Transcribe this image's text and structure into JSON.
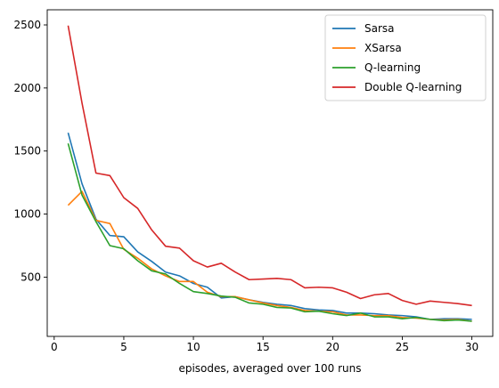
{
  "chart_data": {
    "type": "line",
    "title": "",
    "xlabel": "episodes, averaged over 100 runs",
    "ylabel": "",
    "xlim": [
      -0.5,
      31.5
    ],
    "ylim": [
      30,
      2620
    ],
    "xticks": [
      0,
      5,
      10,
      15,
      20,
      25,
      30
    ],
    "yticks": [
      500,
      1000,
      1500,
      2000,
      2500
    ],
    "grid": false,
    "legend": "top-right",
    "x": [
      1,
      2,
      3,
      4,
      5,
      6,
      7,
      8,
      9,
      10,
      11,
      12,
      13,
      14,
      15,
      16,
      17,
      18,
      19,
      20,
      21,
      22,
      23,
      24,
      25,
      26,
      27,
      28,
      29,
      30
    ],
    "series": [
      {
        "name": "Sarsa",
        "color": "#1f77b4",
        "values": [
          1645,
          1240,
          960,
          830,
          820,
          700,
          625,
          540,
          510,
          450,
          420,
          335,
          345,
          320,
          300,
          285,
          275,
          250,
          240,
          235,
          215,
          215,
          210,
          200,
          195,
          185,
          165,
          170,
          170,
          165
        ]
      },
      {
        "name": "XSarsa",
        "color": "#ff7f0e",
        "values": [
          1070,
          1180,
          950,
          925,
          720,
          650,
          565,
          510,
          465,
          465,
          380,
          345,
          345,
          320,
          295,
          275,
          260,
          235,
          230,
          225,
          200,
          200,
          195,
          195,
          180,
          175,
          165,
          160,
          165,
          150
        ]
      },
      {
        "name": "Q-learning",
        "color": "#2ca02c",
        "values": [
          1560,
          1150,
          940,
          750,
          725,
          630,
          550,
          525,
          450,
          385,
          370,
          350,
          340,
          295,
          285,
          260,
          255,
          225,
          230,
          210,
          195,
          215,
          185,
          185,
          170,
          180,
          165,
          155,
          160,
          150
        ]
      },
      {
        "name": "Double Q-learning",
        "color": "#d62728",
        "values": [
          2495,
          1880,
          1325,
          1305,
          1130,
          1045,
          875,
          745,
          730,
          630,
          580,
          610,
          540,
          480,
          485,
          490,
          480,
          415,
          420,
          415,
          380,
          330,
          360,
          370,
          315,
          285,
          310,
          300,
          290,
          275
        ]
      }
    ]
  }
}
